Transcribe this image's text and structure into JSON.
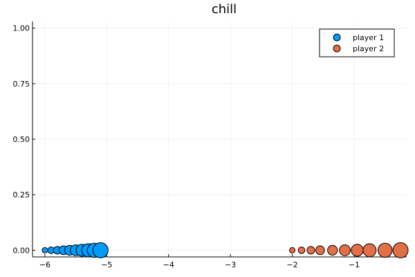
{
  "chart_data": {
    "type": "scatter",
    "title": "chill",
    "xlabel": "",
    "ylabel": "",
    "xlim": [
      -6.2,
      -0.15
    ],
    "ylim": [
      -0.03,
      1.03
    ],
    "x_ticks": [
      -6,
      -5,
      -4,
      -3,
      -2,
      -1
    ],
    "x_tick_labels": [
      "−6",
      "−5",
      "−4",
      "−3",
      "−2",
      "−1"
    ],
    "y_ticks": [
      0.0,
      0.25,
      0.5,
      0.75,
      1.0
    ],
    "y_tick_labels": [
      "0.00",
      "0.25",
      "0.50",
      "0.75",
      "1.00"
    ],
    "grid": true,
    "legend_position": "top-right",
    "series": [
      {
        "name": "player 1",
        "color": "#009af9",
        "x": [
          -6.0,
          -5.9,
          -5.8,
          -5.7,
          -5.6,
          -5.5,
          -5.4,
          -5.3,
          -5.2,
          -5.1
        ],
        "y": [
          0,
          0,
          0,
          0,
          0,
          0,
          0,
          0,
          0,
          0
        ],
        "sizes": [
          1,
          2,
          3,
          4,
          5,
          6,
          7,
          8,
          9,
          10
        ]
      },
      {
        "name": "player 2",
        "color": "#e26f46",
        "x": [
          -2.0,
          -1.85,
          -1.7,
          -1.55,
          -1.35,
          -1.15,
          -0.95,
          -0.75,
          -0.5,
          -0.25
        ],
        "y": [
          0,
          0,
          0,
          0,
          0,
          0,
          0,
          0,
          0,
          0
        ],
        "sizes": [
          1,
          2,
          3,
          4,
          5,
          6,
          7,
          8,
          9,
          10
        ]
      }
    ]
  }
}
